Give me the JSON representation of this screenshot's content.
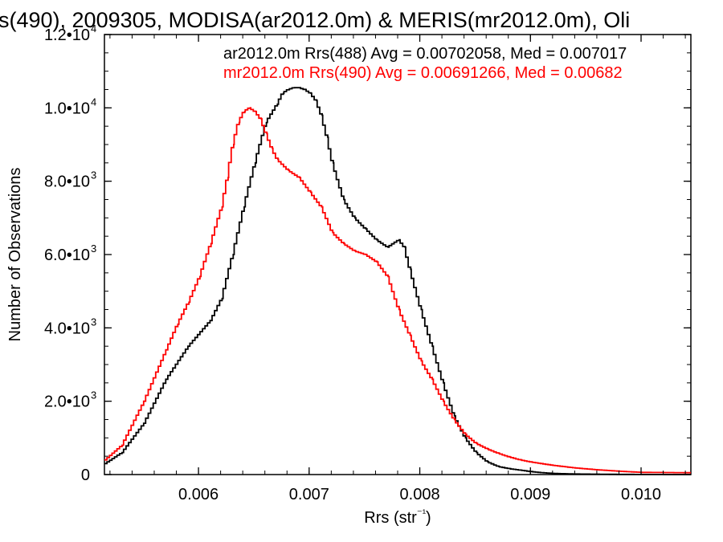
{
  "chart_data": {
    "type": "line",
    "title": "s(490), 2009305, MODISA(ar2012.0m) & MERIS(mr2012.0m), Oli",
    "xlabel": "Rrs (str⁻¹)",
    "ylabel": "Number of Observations",
    "xlim": [
      0.00515,
      0.01045
    ],
    "ylim": [
      0,
      12000
    ],
    "x_ticks": [
      {
        "value": 0.006,
        "label": "0.006"
      },
      {
        "value": 0.007,
        "label": "0.007"
      },
      {
        "value": 0.008,
        "label": "0.008"
      },
      {
        "value": 0.009,
        "label": "0.009"
      },
      {
        "value": 0.01,
        "label": "0.010"
      }
    ],
    "y_ticks": [
      {
        "value": 0,
        "mantissa": "0",
        "exp": ""
      },
      {
        "value": 2000,
        "mantissa": "2.0•10",
        "exp": "3"
      },
      {
        "value": 4000,
        "mantissa": "4.0•10",
        "exp": "3"
      },
      {
        "value": 6000,
        "mantissa": "6.0•10",
        "exp": "3"
      },
      {
        "value": 8000,
        "mantissa": "8.0•10",
        "exp": "3"
      },
      {
        "value": 10000,
        "mantissa": "1.0•10",
        "exp": "4"
      },
      {
        "value": 12000,
        "mantissa": "1.2•10",
        "exp": "4"
      }
    ],
    "grid": false,
    "legend_position": "top-right",
    "series": [
      {
        "name": "ar2012.0m Rrs(488)",
        "legend_text": "ar2012.0m Rrs(488) Avg = 0.00702058, Med = 0.007017",
        "color": "#000000",
        "style": "step",
        "x": [
          0.00515,
          0.0053,
          0.0055,
          0.0057,
          0.0059,
          0.0061,
          0.0062,
          0.0063,
          0.0064,
          0.0065,
          0.0066,
          0.0067,
          0.00675,
          0.0068,
          0.00685,
          0.0069,
          0.00695,
          0.007,
          0.00705,
          0.0071,
          0.00715,
          0.0072,
          0.0073,
          0.0074,
          0.0075,
          0.0076,
          0.0077,
          0.0078,
          0.00785,
          0.0079,
          0.008,
          0.0081,
          0.0082,
          0.0083,
          0.0084,
          0.0085,
          0.0086,
          0.0087,
          0.0088,
          0.0089,
          0.009,
          0.0091,
          0.0092,
          0.0094,
          0.0096,
          0.0098,
          0.01,
          0.01045
        ],
        "y": [
          300,
          600,
          1400,
          2600,
          3500,
          4200,
          4800,
          6000,
          7300,
          8500,
          9600,
          10100,
          10400,
          10500,
          10550,
          10550,
          10500,
          10400,
          10200,
          9800,
          9200,
          8500,
          7500,
          7000,
          6700,
          6400,
          6200,
          6400,
          6200,
          5600,
          4500,
          3500,
          2500,
          1600,
          1000,
          600,
          350,
          220,
          160,
          120,
          80,
          50,
          30,
          15,
          10,
          5,
          2,
          0
        ]
      },
      {
        "name": "mr2012.0m Rrs(490)",
        "legend_text": "mr2012.0m Rrs(490) Avg = 0.00691266, Med = 0.00682",
        "color": "#ff0000",
        "style": "step",
        "x": [
          0.00515,
          0.0053,
          0.0055,
          0.0057,
          0.0058,
          0.0059,
          0.006,
          0.0061,
          0.0062,
          0.00625,
          0.0063,
          0.00635,
          0.0064,
          0.00645,
          0.0065,
          0.00655,
          0.0066,
          0.00665,
          0.0067,
          0.0068,
          0.0069,
          0.007,
          0.0071,
          0.0072,
          0.0073,
          0.0074,
          0.0075,
          0.0076,
          0.0077,
          0.0078,
          0.0079,
          0.008,
          0.0081,
          0.0082,
          0.0083,
          0.0084,
          0.0085,
          0.0086,
          0.0087,
          0.0088,
          0.0089,
          0.009,
          0.0092,
          0.0094,
          0.0096,
          0.0098,
          0.01,
          0.01045
        ],
        "y": [
          400,
          800,
          2000,
          3400,
          4100,
          4700,
          5400,
          6300,
          7300,
          8100,
          9000,
          9600,
          9900,
          10000,
          9900,
          9700,
          9300,
          8900,
          8600,
          8300,
          8100,
          7700,
          7300,
          6600,
          6300,
          6100,
          6000,
          5800,
          5400,
          4500,
          3800,
          3100,
          2600,
          2000,
          1500,
          1100,
          850,
          700,
          580,
          480,
          400,
          340,
          250,
          180,
          130,
          90,
          60,
          50
        ]
      }
    ]
  }
}
